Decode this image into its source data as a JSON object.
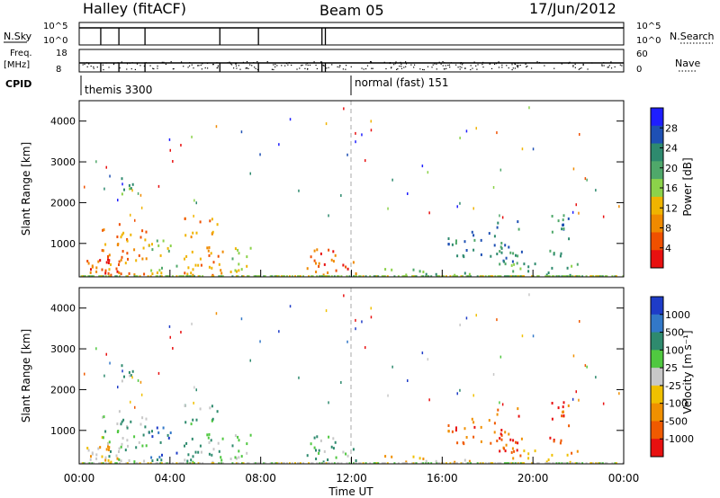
{
  "header": {
    "station": "Halley (fitACF)",
    "beam": "Beam 05",
    "date": "17/Jun/2012"
  },
  "top_panels": {
    "nsky_label": "N.Sky",
    "nsky_ticks": [
      "10^5",
      "10^0"
    ],
    "nsearch_label": "N.Search",
    "nsearch_ticks": [
      "10^5",
      "10^0"
    ],
    "freq_label": "Freq.",
    "freq_unit": "[MHz]",
    "freq_ticks": [
      "18",
      "8"
    ],
    "nave_label": "Nave",
    "nave_ticks": [
      "60",
      "0"
    ],
    "cpid_label": "CPID",
    "cpid_segments": [
      {
        "label": "themis 3300",
        "start_hour": 0
      },
      {
        "label": "normal (fast) 151",
        "start_hour": 12
      }
    ]
  },
  "colors": {
    "power_scale": [
      "#1e1eff",
      "#1e50b4",
      "#2e8a6e",
      "#4fa86a",
      "#8cd24a",
      "#f0b400",
      "#f08a00",
      "#f05000",
      "#e81010"
    ],
    "velocity_scale": [
      "#1e3cc8",
      "#3278c8",
      "#2e8a6e",
      "#50c840",
      "#c8c8c8",
      "#f0c000",
      "#f09000",
      "#f05a00",
      "#e81010"
    ]
  },
  "chart_data": [
    {
      "type": "heatmap",
      "name": "power",
      "ylabel": "Slant Range [km]",
      "colorbar_label": "Power [dB]",
      "colorbar_ticks": [
        "28",
        "24",
        "20",
        "16",
        "12",
        "8",
        "4"
      ],
      "xlim": [
        0,
        24
      ],
      "ylim": [
        180,
        4500
      ],
      "yticks": [
        "1000",
        "2000",
        "3000",
        "4000"
      ],
      "ytick_values": [
        1000,
        2000,
        3000,
        4000
      ],
      "clusters": [
        {
          "t0": 0.0,
          "t1": 1.7,
          "r0": 250,
          "r1": 1000,
          "level": 7
        },
        {
          "t0": 0.9,
          "t1": 3.0,
          "r0": 250,
          "r1": 1500,
          "level": 6
        },
        {
          "t0": 1.8,
          "t1": 2.4,
          "r0": 2200,
          "r1": 2950,
          "level": 3
        },
        {
          "t0": 3.0,
          "t1": 4.3,
          "r0": 250,
          "r1": 1100,
          "level": 4
        },
        {
          "t0": 4.6,
          "t1": 6.3,
          "r0": 250,
          "r1": 1650,
          "level": 6
        },
        {
          "t0": 6.6,
          "t1": 7.6,
          "r0": 250,
          "r1": 1050,
          "level": 4
        },
        {
          "t0": 10.0,
          "t1": 12.2,
          "r0": 250,
          "r1": 900,
          "level": 7
        },
        {
          "t0": 13.2,
          "t1": 17.5,
          "r0": 250,
          "r1": 400,
          "level": 3
        },
        {
          "t0": 16.2,
          "t1": 17.8,
          "r0": 700,
          "r1": 1350,
          "level": 2
        },
        {
          "t0": 18.0,
          "t1": 19.5,
          "r0": 500,
          "r1": 1600,
          "level": 2
        },
        {
          "t0": 20.6,
          "t1": 21.6,
          "r0": 700,
          "r1": 1750,
          "level": 2
        },
        {
          "t0": 19.0,
          "t1": 22.0,
          "r0": 250,
          "r1": 550,
          "level": 3
        }
      ]
    },
    {
      "type": "heatmap",
      "name": "velocity",
      "xlabel": "Time UT",
      "ylabel": "Slant Range [km]",
      "colorbar_label": "Velocity [m s⁻¹]",
      "colorbar_ticks": [
        "1000",
        "500",
        "100",
        "25",
        "-25",
        "-100",
        "-500",
        "-1000"
      ],
      "xlim": [
        0,
        24
      ],
      "ylim": [
        180,
        4500
      ],
      "xticks": [
        "00:00",
        "04:00",
        "08:00",
        "12:00",
        "16:00",
        "20:00",
        "00:00"
      ],
      "xtick_values": [
        0,
        4,
        8,
        12,
        16,
        20,
        24
      ],
      "yticks": [
        "1000",
        "2000",
        "3000",
        "4000"
      ],
      "ytick_values": [
        1000,
        2000,
        3000,
        4000
      ],
      "clusters": [
        {
          "t0": 0.0,
          "t1": 1.7,
          "r0": 250,
          "r1": 1000,
          "level": 5
        },
        {
          "t0": 0.9,
          "t1": 3.0,
          "r0": 250,
          "r1": 1500,
          "level": 3
        },
        {
          "t0": 1.8,
          "t1": 2.4,
          "r0": 2200,
          "r1": 2950,
          "level": 3
        },
        {
          "t0": 3.0,
          "t1": 4.3,
          "r0": 250,
          "r1": 1100,
          "level": 1
        },
        {
          "t0": 4.6,
          "t1": 6.3,
          "r0": 250,
          "r1": 1650,
          "level": 3
        },
        {
          "t0": 6.6,
          "t1": 7.6,
          "r0": 250,
          "r1": 1050,
          "level": 3
        },
        {
          "t0": 10.0,
          "t1": 12.2,
          "r0": 250,
          "r1": 900,
          "level": 3
        },
        {
          "t0": 13.2,
          "t1": 17.5,
          "r0": 250,
          "r1": 400,
          "level": 5
        },
        {
          "t0": 16.2,
          "t1": 17.8,
          "r0": 700,
          "r1": 1350,
          "level": 7
        },
        {
          "t0": 18.0,
          "t1": 19.5,
          "r0": 500,
          "r1": 1600,
          "level": 7
        },
        {
          "t0": 20.6,
          "t1": 21.6,
          "r0": 700,
          "r1": 1750,
          "level": 7
        },
        {
          "t0": 19.0,
          "t1": 22.0,
          "r0": 250,
          "r1": 550,
          "level": 6
        }
      ]
    }
  ]
}
